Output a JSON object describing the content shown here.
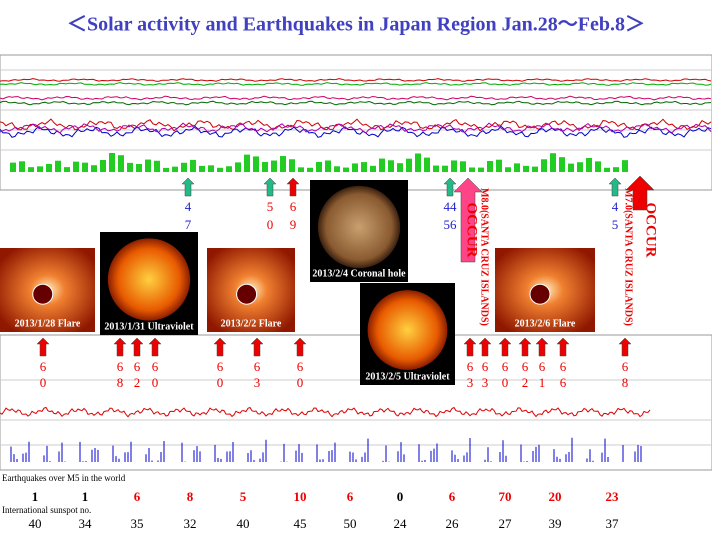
{
  "title": "＜Solar activity and Earthquakes in Japan Region Jan.28～Feb.8＞",
  "images": [
    {
      "caption": "2013/1/28 Flare"
    },
    {
      "caption": "2013/1/31 Ultraviolet"
    },
    {
      "caption": "2013/2/2 Flare"
    },
    {
      "caption": "2013/2/4 Coronal hole"
    },
    {
      "caption": "2013/2/5 Ultraviolet"
    },
    {
      "caption": "2013/2/6 Flare"
    }
  ],
  "upper_arrows": [
    {
      "top": "4",
      "bottom": "7"
    },
    {
      "top": "5",
      "bottom": "0"
    },
    {
      "top": "6",
      "bottom": "9"
    },
    {
      "top": "44",
      "bottom": "56"
    },
    {
      "top": "4",
      "bottom": "5"
    }
  ],
  "events": [
    {
      "label": "OCCUR",
      "detail": "M8.0(SANTA CRUZ ISLANDS)"
    },
    {
      "label": "OCCUR",
      "detail": "M7.0(SANTA CRUZ ISLANDS)"
    }
  ],
  "lower_arrows": [
    {
      "top": "6",
      "bottom": "0"
    },
    {
      "top": "6",
      "bottom": "8"
    },
    {
      "top": "6",
      "bottom": "2"
    },
    {
      "top": "6",
      "bottom": "0"
    },
    {
      "top": "6",
      "bottom": "0"
    },
    {
      "top": "6",
      "bottom": "3"
    },
    {
      "top": "6",
      "bottom": "0"
    },
    {
      "top": "6",
      "bottom": "3"
    },
    {
      "top": "6",
      "bottom": "3"
    },
    {
      "top": "6",
      "bottom": "0"
    },
    {
      "top": "6",
      "bottom": "2"
    },
    {
      "top": "6",
      "bottom": "1"
    },
    {
      "top": "6",
      "bottom": "6"
    },
    {
      "top": "6",
      "bottom": "8"
    }
  ],
  "table": {
    "earthquakes_label": "Earthquakes over M5 in the world",
    "earthquakes": [
      "1",
      "1",
      "6",
      "8",
      "5",
      "10",
      "6",
      "0",
      "6",
      "70",
      "20",
      "23"
    ],
    "earthquake_colors": [
      "#000",
      "#000",
      "#e00",
      "#e00",
      "#e00",
      "#e00",
      "#e00",
      "#000",
      "#e00",
      "#e00",
      "#e00",
      "#e00"
    ],
    "sunspots_label": "International sunspot no.",
    "sunspots": [
      "40",
      "34",
      "35",
      "32",
      "40",
      "45",
      "50",
      "24",
      "26",
      "27",
      "39",
      "37"
    ]
  }
}
